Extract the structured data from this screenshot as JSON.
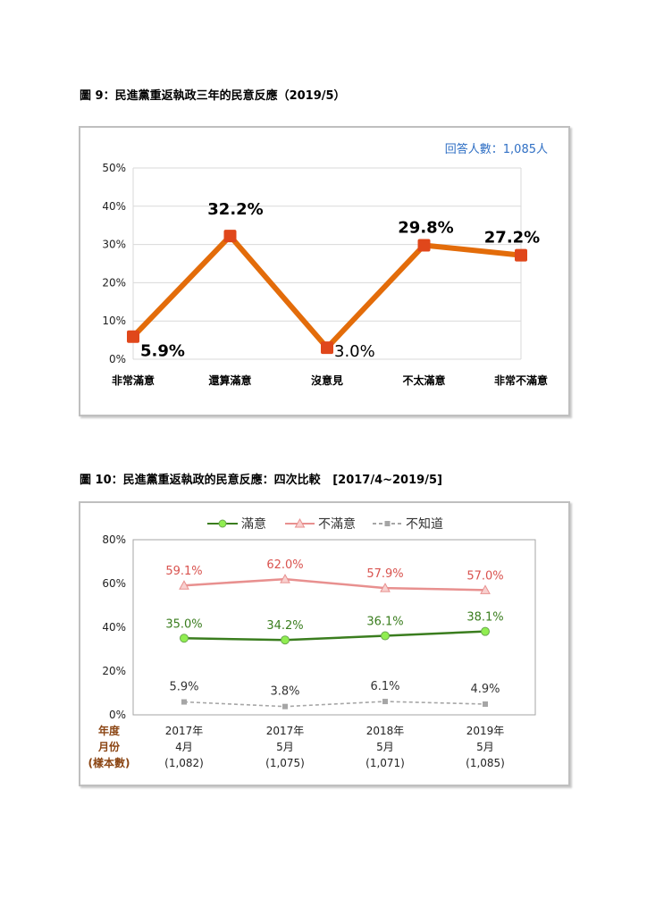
{
  "figure9": {
    "title": "圖 9：民進黨重返執政三年的民意反應（2019/5）",
    "note": "回答人數：1,085人",
    "colors": {
      "line": "#e36c0a",
      "marker": "#e0471b"
    },
    "chart_data": {
      "type": "line",
      "categories": [
        "非常滿意",
        "還算滿意",
        "沒意見",
        "不太滿意",
        "非常不滿意"
      ],
      "values": [
        5.9,
        32.2,
        3.0,
        29.8,
        27.2
      ],
      "data_labels": [
        "5.9%",
        "32.2%",
        "3.0%",
        "29.8%",
        "27.2%"
      ],
      "ylim": [
        0,
        50
      ],
      "yticks": [
        "0%",
        "10%",
        "20%",
        "30%",
        "40%",
        "50%"
      ],
      "grid": true
    }
  },
  "figure10": {
    "title": "圖 10：民進黨重返執政的民意反應：四次比較",
    "title_range": "[2017/4~2019/5]",
    "colors": {
      "satisfied": "#3a7d1e",
      "satisfied_marker": "#90ee50",
      "dissatisfied": "#e8908f",
      "unknown": "#a6a6a6",
      "row_label": "#8b4513"
    },
    "row_labels": [
      "年度",
      "月份",
      "(樣本數)"
    ],
    "chart_data": {
      "type": "line",
      "categories": [
        {
          "year": "2017年",
          "month": "4月",
          "n": "(1,082)"
        },
        {
          "year": "2017年",
          "month": "5月",
          "n": "(1,075)"
        },
        {
          "year": "2018年",
          "month": "5月",
          "n": "(1,071)"
        },
        {
          "year": "2019年",
          "month": "5月",
          "n": "(1,085)"
        }
      ],
      "series": [
        {
          "name": "滿意",
          "values": [
            35.0,
            34.2,
            36.1,
            38.1
          ],
          "labels": [
            "35.0%",
            "34.2%",
            "36.1%",
            "38.1%"
          ]
        },
        {
          "name": "不滿意",
          "values": [
            59.1,
            62.0,
            57.9,
            57.0
          ],
          "labels": [
            "59.1%",
            "62.0%",
            "57.9%",
            "57.0%"
          ]
        },
        {
          "name": "不知道",
          "values": [
            5.9,
            3.8,
            6.1,
            4.9
          ],
          "labels": [
            "5.9%",
            "3.8%",
            "6.1%",
            "4.9%"
          ]
        }
      ],
      "ylim": [
        0,
        80
      ],
      "yticks": [
        "0%",
        "20%",
        "40%",
        "60%",
        "80%"
      ],
      "legend": "top",
      "grid": false
    }
  }
}
